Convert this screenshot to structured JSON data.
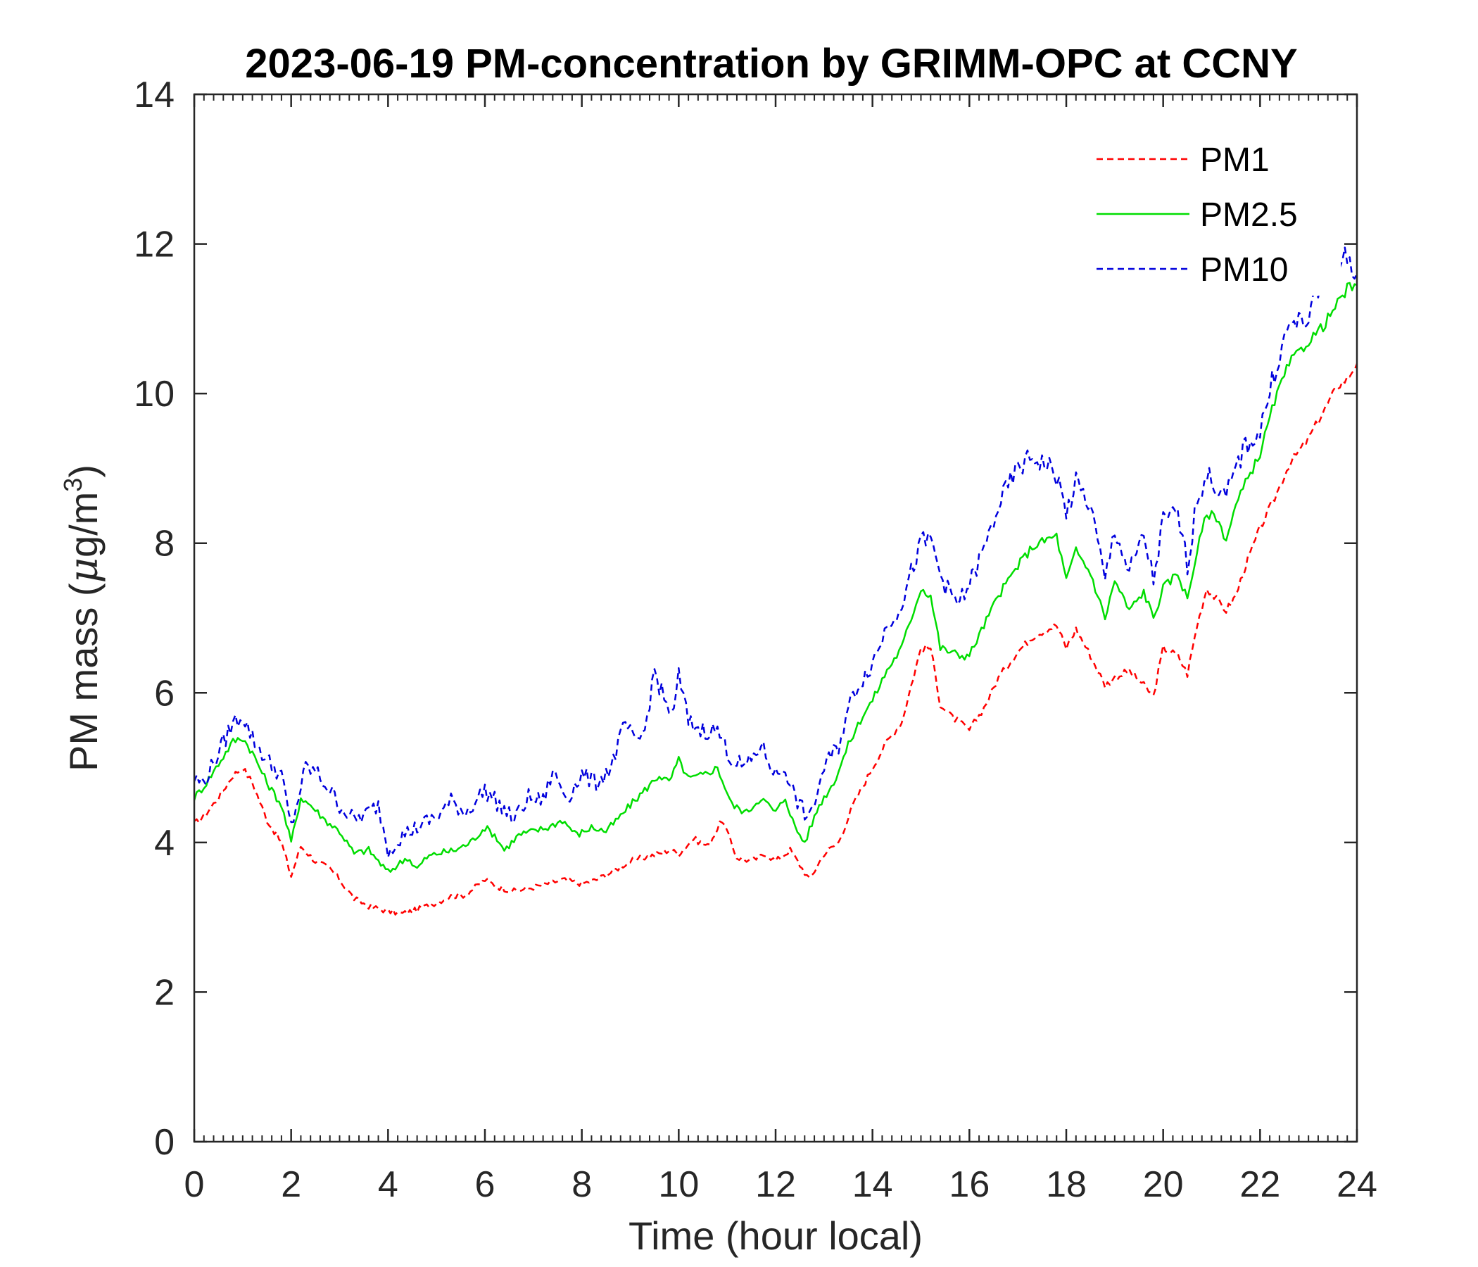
{
  "chart_data": {
    "type": "line",
    "title": "2023-06-19 PM-concentration by GRIMM-OPC at CCNY",
    "xlabel": "Time (hour local)",
    "ylabel_prefix": "PM mass (",
    "ylabel_mu": "μ",
    "ylabel_unit": "g/m",
    "ylabel_sup": "3",
    "ylabel_suffix": ")",
    "xlim": [
      0,
      24
    ],
    "ylim": [
      0,
      14
    ],
    "xticks": [
      0,
      2,
      4,
      6,
      8,
      10,
      12,
      14,
      16,
      18,
      20,
      22,
      24
    ],
    "yticks": [
      0,
      2,
      4,
      6,
      8,
      10,
      12,
      14
    ],
    "x_minor_step": 0.2,
    "grid": false,
    "legend_position": "top-right",
    "series": [
      {
        "name": "PM1",
        "color": "#ff0000",
        "dash": "dashed",
        "points": [
          [
            0,
            4.25
          ],
          [
            0.2,
            4.35
          ],
          [
            0.5,
            4.6
          ],
          [
            0.8,
            4.9
          ],
          [
            1.0,
            5.0
          ],
          [
            1.2,
            4.8
          ],
          [
            1.5,
            4.3
          ],
          [
            1.8,
            4.0
          ],
          [
            2.0,
            3.55
          ],
          [
            2.2,
            3.95
          ],
          [
            2.5,
            3.75
          ],
          [
            2.8,
            3.65
          ],
          [
            3.0,
            3.5
          ],
          [
            3.3,
            3.25
          ],
          [
            3.6,
            3.15
          ],
          [
            4.0,
            3.08
          ],
          [
            4.3,
            3.05
          ],
          [
            4.6,
            3.1
          ],
          [
            5.0,
            3.2
          ],
          [
            5.3,
            3.28
          ],
          [
            5.6,
            3.3
          ],
          [
            6.0,
            3.5
          ],
          [
            6.3,
            3.4
          ],
          [
            6.6,
            3.35
          ],
          [
            7.0,
            3.4
          ],
          [
            7.3,
            3.45
          ],
          [
            7.6,
            3.5
          ],
          [
            8.0,
            3.45
          ],
          [
            8.3,
            3.5
          ],
          [
            8.6,
            3.6
          ],
          [
            9.0,
            3.75
          ],
          [
            9.3,
            3.8
          ],
          [
            9.6,
            3.85
          ],
          [
            9.8,
            3.9
          ],
          [
            10.0,
            3.85
          ],
          [
            10.3,
            4.05
          ],
          [
            10.6,
            3.95
          ],
          [
            10.9,
            4.3
          ],
          [
            11.2,
            3.8
          ],
          [
            11.5,
            3.75
          ],
          [
            11.8,
            3.85
          ],
          [
            12.0,
            3.75
          ],
          [
            12.3,
            3.9
          ],
          [
            12.5,
            3.7
          ],
          [
            12.7,
            3.5
          ],
          [
            13.0,
            3.85
          ],
          [
            13.3,
            4.0
          ],
          [
            13.6,
            4.5
          ],
          [
            14.0,
            5.0
          ],
          [
            14.3,
            5.35
          ],
          [
            14.6,
            5.6
          ],
          [
            14.8,
            6.1
          ],
          [
            15.0,
            6.6
          ],
          [
            15.2,
            6.6
          ],
          [
            15.4,
            5.85
          ],
          [
            15.6,
            5.7
          ],
          [
            15.8,
            5.6
          ],
          [
            16.0,
            5.5
          ],
          [
            16.3,
            5.8
          ],
          [
            16.6,
            6.2
          ],
          [
            17.0,
            6.55
          ],
          [
            17.3,
            6.75
          ],
          [
            17.6,
            6.85
          ],
          [
            17.8,
            6.9
          ],
          [
            18.0,
            6.6
          ],
          [
            18.2,
            6.85
          ],
          [
            18.5,
            6.5
          ],
          [
            18.8,
            6.1
          ],
          [
            19.0,
            6.2
          ],
          [
            19.3,
            6.3
          ],
          [
            19.6,
            6.1
          ],
          [
            19.8,
            5.95
          ],
          [
            20.0,
            6.6
          ],
          [
            20.3,
            6.5
          ],
          [
            20.5,
            6.25
          ],
          [
            20.7,
            6.9
          ],
          [
            20.9,
            7.4
          ],
          [
            21.1,
            7.25
          ],
          [
            21.3,
            7.1
          ],
          [
            21.5,
            7.3
          ],
          [
            21.7,
            7.7
          ],
          [
            22.0,
            8.2
          ],
          [
            22.3,
            8.6
          ],
          [
            22.6,
            9.05
          ],
          [
            23.0,
            9.4
          ],
          [
            23.3,
            9.75
          ],
          [
            23.6,
            10.1
          ],
          [
            23.8,
            10.2
          ],
          [
            24.0,
            10.4
          ]
        ]
      },
      {
        "name": "PM2.5",
        "color": "#00dd00",
        "dash": "solid",
        "points": [
          [
            0,
            4.6
          ],
          [
            0.2,
            4.75
          ],
          [
            0.5,
            5.05
          ],
          [
            0.8,
            5.35
          ],
          [
            1.0,
            5.4
          ],
          [
            1.2,
            5.2
          ],
          [
            1.5,
            4.8
          ],
          [
            1.8,
            4.5
          ],
          [
            2.0,
            4.0
          ],
          [
            2.2,
            4.6
          ],
          [
            2.4,
            4.5
          ],
          [
            2.7,
            4.3
          ],
          [
            3.0,
            4.15
          ],
          [
            3.3,
            3.85
          ],
          [
            3.6,
            3.9
          ],
          [
            4.0,
            3.6
          ],
          [
            4.2,
            3.7
          ],
          [
            4.4,
            3.8
          ],
          [
            4.6,
            3.65
          ],
          [
            4.8,
            3.8
          ],
          [
            5.0,
            3.85
          ],
          [
            5.4,
            3.9
          ],
          [
            5.7,
            4.0
          ],
          [
            6.0,
            4.2
          ],
          [
            6.2,
            4.1
          ],
          [
            6.4,
            3.9
          ],
          [
            6.7,
            4.1
          ],
          [
            7.0,
            4.15
          ],
          [
            7.3,
            4.2
          ],
          [
            7.6,
            4.3
          ],
          [
            7.9,
            4.1
          ],
          [
            8.2,
            4.2
          ],
          [
            8.5,
            4.15
          ],
          [
            8.8,
            4.35
          ],
          [
            9.0,
            4.5
          ],
          [
            9.3,
            4.7
          ],
          [
            9.6,
            4.9
          ],
          [
            9.8,
            4.8
          ],
          [
            10.0,
            5.1
          ],
          [
            10.2,
            4.85
          ],
          [
            10.5,
            4.9
          ],
          [
            10.8,
            5.0
          ],
          [
            11.1,
            4.5
          ],
          [
            11.4,
            4.4
          ],
          [
            11.7,
            4.6
          ],
          [
            12.0,
            4.4
          ],
          [
            12.2,
            4.6
          ],
          [
            12.4,
            4.2
          ],
          [
            12.6,
            4.0
          ],
          [
            12.9,
            4.5
          ],
          [
            13.2,
            4.8
          ],
          [
            13.5,
            5.3
          ],
          [
            13.8,
            5.7
          ],
          [
            14.0,
            5.9
          ],
          [
            14.3,
            6.3
          ],
          [
            14.6,
            6.6
          ],
          [
            14.8,
            7.0
          ],
          [
            15.0,
            7.4
          ],
          [
            15.2,
            7.3
          ],
          [
            15.4,
            6.6
          ],
          [
            15.6,
            6.55
          ],
          [
            15.8,
            6.5
          ],
          [
            16.0,
            6.5
          ],
          [
            16.3,
            6.9
          ],
          [
            16.6,
            7.3
          ],
          [
            17.0,
            7.7
          ],
          [
            17.3,
            7.95
          ],
          [
            17.6,
            8.05
          ],
          [
            17.8,
            8.1
          ],
          [
            18.0,
            7.5
          ],
          [
            18.2,
            7.9
          ],
          [
            18.5,
            7.6
          ],
          [
            18.8,
            7.0
          ],
          [
            19.0,
            7.5
          ],
          [
            19.3,
            7.1
          ],
          [
            19.6,
            7.35
          ],
          [
            19.8,
            7.0
          ],
          [
            20.0,
            7.4
          ],
          [
            20.3,
            7.6
          ],
          [
            20.5,
            7.25
          ],
          [
            20.7,
            7.9
          ],
          [
            20.9,
            8.4
          ],
          [
            21.1,
            8.35
          ],
          [
            21.3,
            8.05
          ],
          [
            21.5,
            8.5
          ],
          [
            21.7,
            8.8
          ],
          [
            22.0,
            9.2
          ],
          [
            22.3,
            9.9
          ],
          [
            22.6,
            10.4
          ],
          [
            23.0,
            10.7
          ],
          [
            23.3,
            10.9
          ],
          [
            23.6,
            11.2
          ],
          [
            23.8,
            11.4
          ],
          [
            24.0,
            11.45
          ]
        ]
      },
      {
        "name": "PM10",
        "color": "#0000dd",
        "dash": "dashed",
        "points": [
          [
            0,
            4.85
          ],
          [
            0.2,
            4.8
          ],
          [
            0.5,
            5.2
          ],
          [
            0.8,
            5.6
          ],
          [
            1.0,
            5.7
          ],
          [
            1.2,
            5.4
          ],
          [
            1.5,
            5.1
          ],
          [
            1.8,
            4.9
          ],
          [
            2.0,
            4.2
          ],
          [
            2.3,
            5.0
          ],
          [
            2.5,
            4.95
          ],
          [
            2.8,
            4.7
          ],
          [
            3.0,
            4.5
          ],
          [
            3.3,
            4.3
          ],
          [
            3.6,
            4.4
          ],
          [
            3.8,
            4.5
          ],
          [
            4.0,
            3.9
          ],
          [
            4.3,
            4.1
          ],
          [
            4.6,
            4.2
          ],
          [
            5.0,
            4.35
          ],
          [
            5.3,
            4.55
          ],
          [
            5.6,
            4.4
          ],
          [
            6.0,
            4.7
          ],
          [
            6.3,
            4.5
          ],
          [
            6.6,
            4.3
          ],
          [
            6.9,
            4.6
          ],
          [
            7.2,
            4.55
          ],
          [
            7.4,
            4.95
          ],
          [
            7.7,
            4.6
          ],
          [
            8.0,
            4.9
          ],
          [
            8.3,
            4.8
          ],
          [
            8.6,
            5.0
          ],
          [
            8.9,
            5.6
          ],
          [
            9.1,
            5.3
          ],
          [
            9.3,
            5.5
          ],
          [
            9.5,
            6.3
          ],
          [
            9.7,
            5.9
          ],
          [
            9.9,
            5.7
          ],
          [
            10.0,
            6.25
          ],
          [
            10.2,
            5.6
          ],
          [
            10.5,
            5.5
          ],
          [
            10.8,
            5.5
          ],
          [
            11.1,
            5.1
          ],
          [
            11.4,
            5.0
          ],
          [
            11.7,
            5.3
          ],
          [
            12.0,
            4.9
          ],
          [
            12.2,
            5.0
          ],
          [
            12.4,
            4.6
          ],
          [
            12.7,
            4.3
          ],
          [
            13.0,
            5.0
          ],
          [
            13.3,
            5.3
          ],
          [
            13.6,
            6.0
          ],
          [
            14.0,
            6.4
          ],
          [
            14.3,
            6.9
          ],
          [
            14.6,
            7.2
          ],
          [
            14.8,
            7.6
          ],
          [
            15.0,
            8.0
          ],
          [
            15.2,
            8.05
          ],
          [
            15.4,
            7.6
          ],
          [
            15.6,
            7.3
          ],
          [
            15.8,
            7.2
          ],
          [
            16.0,
            7.45
          ],
          [
            16.3,
            7.9
          ],
          [
            16.6,
            8.5
          ],
          [
            17.0,
            9.0
          ],
          [
            17.3,
            9.15
          ],
          [
            17.6,
            9.05
          ],
          [
            17.8,
            8.9
          ],
          [
            18.0,
            8.4
          ],
          [
            18.2,
            8.8
          ],
          [
            18.5,
            8.5
          ],
          [
            18.8,
            7.5
          ],
          [
            19.0,
            8.2
          ],
          [
            19.3,
            7.6
          ],
          [
            19.6,
            8.1
          ],
          [
            19.8,
            7.5
          ],
          [
            20.0,
            8.3
          ],
          [
            20.3,
            8.4
          ],
          [
            20.5,
            7.7
          ],
          [
            20.7,
            8.6
          ],
          [
            20.9,
            8.9
          ],
          [
            21.1,
            8.75
          ],
          [
            21.3,
            8.6
          ],
          [
            21.5,
            9.0
          ],
          [
            21.7,
            9.3
          ],
          [
            22.0,
            9.5
          ],
          [
            22.3,
            10.3
          ],
          [
            22.6,
            10.9
          ],
          [
            23.0,
            11.0
          ],
          [
            23.3,
            11.5
          ],
          [
            23.6,
            11.7
          ],
          [
            23.8,
            11.85
          ],
          [
            24.0,
            11.6
          ]
        ]
      }
    ]
  }
}
